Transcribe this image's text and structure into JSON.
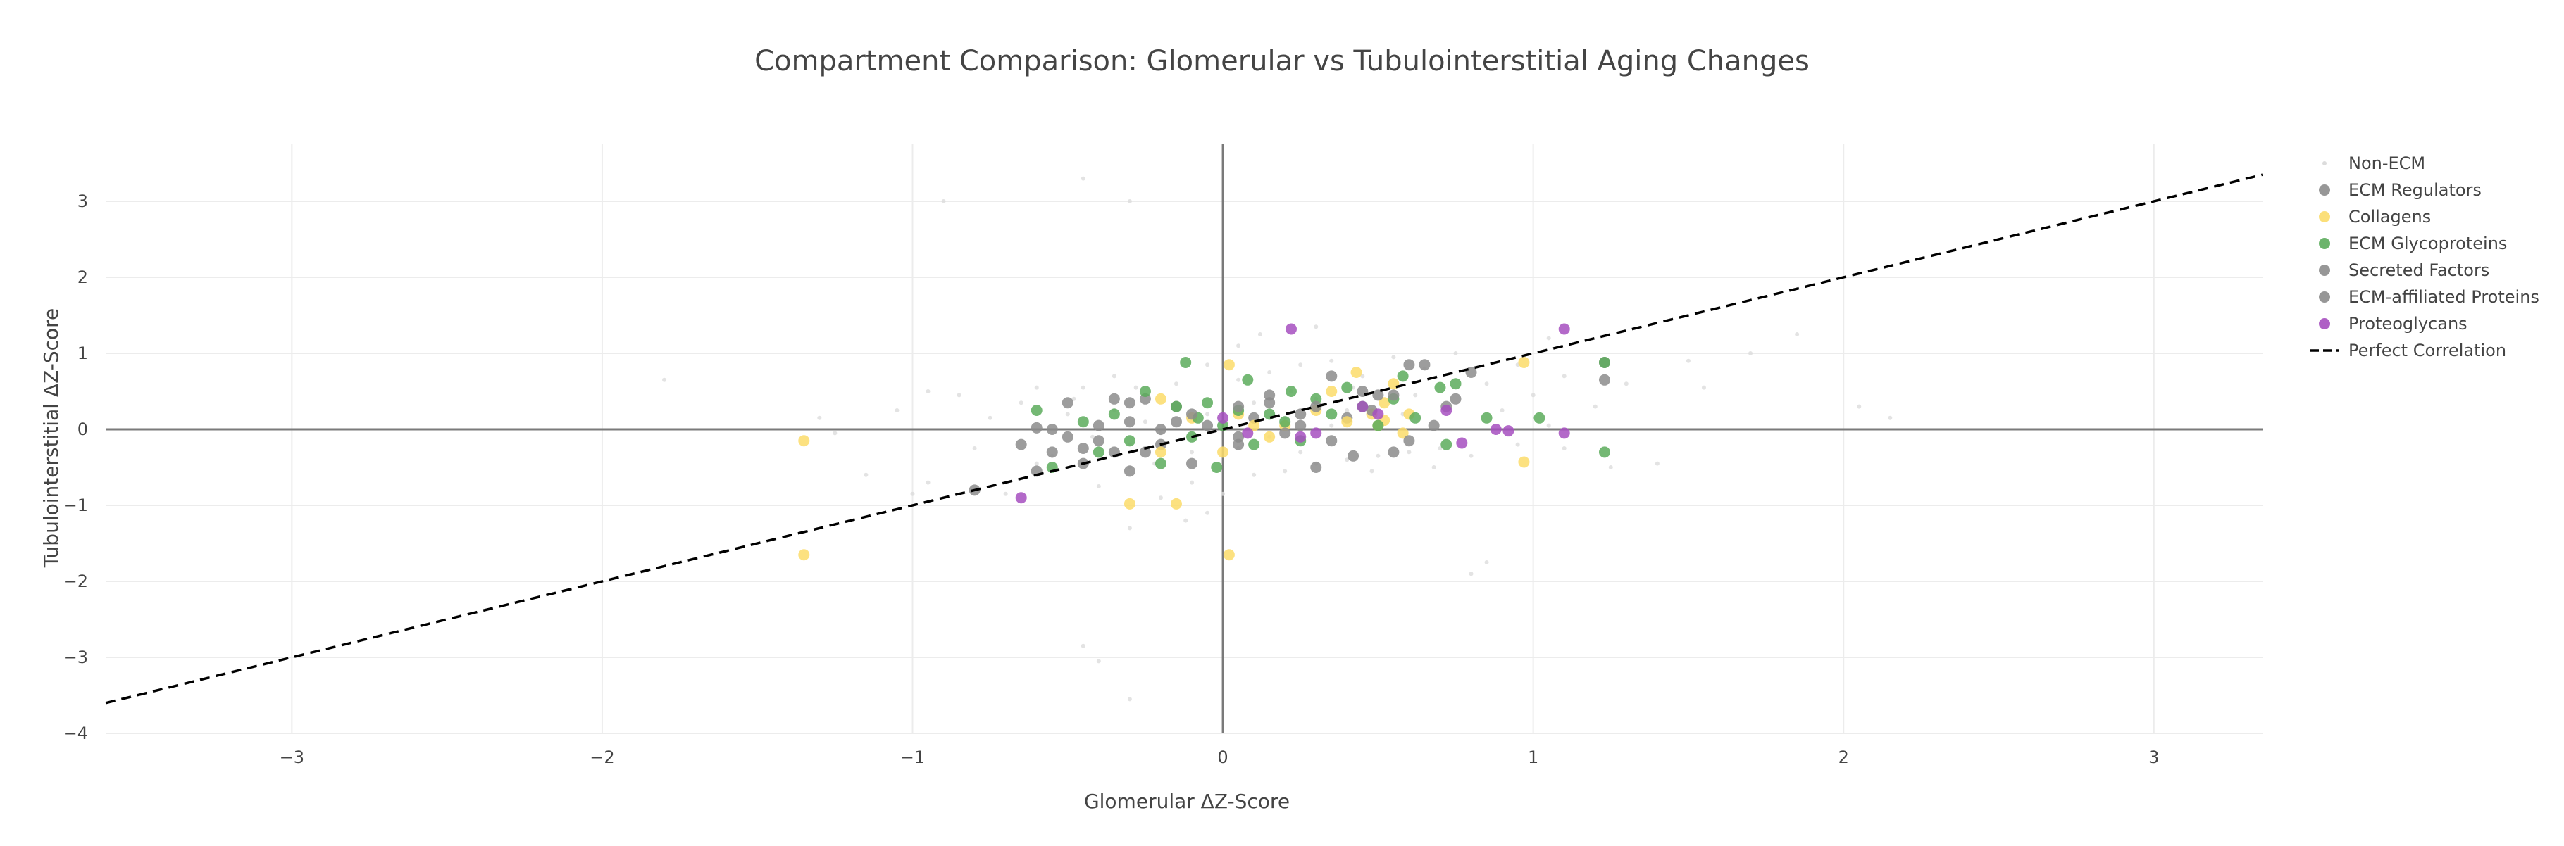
{
  "chart_data": {
    "type": "scatter",
    "title": "Compartment Comparison: Glomerular vs Tubulointerstitial Aging Changes",
    "xlabel": "Glomerular ΔZ-Score",
    "ylabel": "Tubulointerstitial ΔZ-Score",
    "xlim": [
      -3.6,
      3.35
    ],
    "ylim": [
      -4.0,
      3.75
    ],
    "x_ticks": [
      -3,
      -2,
      -1,
      0,
      1,
      2,
      3
    ],
    "x_tick_labels": [
      "−3",
      "−2",
      "−1",
      "0",
      "1",
      "2",
      "3"
    ],
    "y_ticks": [
      -4,
      -3,
      -2,
      -1,
      0,
      1,
      2,
      3
    ],
    "y_tick_labels": [
      "−4",
      "−3",
      "−2",
      "−1",
      "0",
      "1",
      "2",
      "3"
    ],
    "grid": true,
    "legend_position": "top-right",
    "series": [
      {
        "name": "Non-ECM",
        "color": "#dcdcdc",
        "marker": "small-dot",
        "points": [
          [
            -1.8,
            0.65
          ],
          [
            -1.15,
            -0.6
          ],
          [
            -0.9,
            3.0
          ],
          [
            -0.45,
            -2.85
          ],
          [
            -0.4,
            -3.05
          ],
          [
            -0.3,
            -3.55
          ],
          [
            -0.45,
            3.3
          ],
          [
            -0.3,
            3.0
          ],
          [
            1.05,
            1.2
          ],
          [
            1.55,
            0.55
          ],
          [
            1.7,
            1.0
          ],
          [
            1.85,
            1.25
          ],
          [
            2.05,
            0.3
          ],
          [
            2.15,
            0.15
          ],
          [
            0.8,
            -1.9
          ],
          [
            0.85,
            -1.75
          ],
          [
            -1.25,
            -0.05
          ],
          [
            -1.0,
            -0.85
          ],
          [
            -0.95,
            -0.7
          ],
          [
            -0.7,
            -0.85
          ],
          [
            -0.6,
            0.55
          ],
          [
            -0.65,
            0.35
          ],
          [
            -0.55,
            -0.35
          ],
          [
            -0.5,
            0.2
          ],
          [
            -0.45,
            0.55
          ],
          [
            -0.4,
            -0.75
          ],
          [
            -0.35,
            0.7
          ],
          [
            -0.3,
            -0.5
          ],
          [
            -0.25,
            0.45
          ],
          [
            -0.2,
            -0.9
          ],
          [
            -0.15,
            0.6
          ],
          [
            -0.1,
            -0.7
          ],
          [
            -0.05,
            0.85
          ],
          [
            0.0,
            -0.85
          ],
          [
            0.05,
            0.65
          ],
          [
            0.1,
            -0.6
          ],
          [
            0.15,
            0.75
          ],
          [
            0.2,
            -0.55
          ],
          [
            0.25,
            0.85
          ],
          [
            0.3,
            -0.45
          ],
          [
            0.35,
            0.9
          ],
          [
            0.4,
            -0.4
          ],
          [
            0.45,
            0.7
          ],
          [
            0.5,
            -0.35
          ],
          [
            0.55,
            0.95
          ],
          [
            0.6,
            -0.3
          ],
          [
            0.65,
            0.8
          ],
          [
            0.7,
            -0.25
          ],
          [
            0.75,
            1.0
          ],
          [
            0.8,
            -0.35
          ],
          [
            0.85,
            0.6
          ],
          [
            0.9,
            0.25
          ],
          [
            0.95,
            -0.2
          ],
          [
            1.0,
            0.45
          ],
          [
            1.05,
            0.05
          ],
          [
            1.1,
            -0.25
          ],
          [
            1.2,
            0.3
          ],
          [
            1.3,
            0.6
          ],
          [
            1.4,
            -0.45
          ],
          [
            1.5,
            0.9
          ],
          [
            -0.35,
            0.25
          ],
          [
            -0.3,
            -0.2
          ],
          [
            -0.25,
            0.1
          ],
          [
            -0.2,
            -0.05
          ],
          [
            -0.15,
            0.3
          ],
          [
            -0.1,
            -0.3
          ],
          [
            -0.05,
            0.2
          ],
          [
            0.05,
            -0.25
          ],
          [
            0.1,
            0.35
          ],
          [
            0.15,
            -0.1
          ],
          [
            0.2,
            0.15
          ],
          [
            0.25,
            -0.3
          ],
          [
            0.3,
            0.4
          ],
          [
            0.35,
            0.05
          ],
          [
            0.4,
            0.25
          ],
          [
            -0.28,
            0.55
          ],
          [
            -0.22,
            -0.45
          ],
          [
            0.22,
            0.5
          ],
          [
            -0.6,
            -0.45
          ],
          [
            -0.75,
            0.15
          ],
          [
            -0.8,
            -0.25
          ],
          [
            -0.85,
            0.45
          ],
          [
            0.62,
            0.45
          ],
          [
            0.68,
            -0.5
          ],
          [
            0.72,
            0.3
          ],
          [
            0.58,
            0.2
          ],
          [
            0.48,
            -0.55
          ],
          [
            0.42,
            0.55
          ],
          [
            -0.42,
            -0.1
          ],
          [
            -0.48,
            0.4
          ],
          [
            1.25,
            -0.5
          ],
          [
            -1.05,
            0.25
          ],
          [
            -0.95,
            0.5
          ],
          [
            -1.3,
            0.15
          ],
          [
            0.95,
            0.85
          ],
          [
            1.1,
            0.7
          ],
          [
            0.05,
            1.1
          ],
          [
            -0.05,
            -1.1
          ],
          [
            0.12,
            1.25
          ],
          [
            -0.12,
            -1.2
          ],
          [
            0.3,
            1.35
          ],
          [
            -0.3,
            -1.3
          ]
        ]
      },
      {
        "name": "ECM Regulators",
        "color": "#8c8c8c",
        "points": [
          [
            -0.6,
            -0.55
          ],
          [
            -0.6,
            0.02
          ],
          [
            -0.55,
            -0.3
          ],
          [
            -0.5,
            -0.1
          ],
          [
            -0.45,
            -0.45
          ],
          [
            -0.4,
            -0.15
          ],
          [
            -0.35,
            0.4
          ],
          [
            -0.35,
            -0.3
          ],
          [
            -0.3,
            0.1
          ],
          [
            -0.3,
            -0.55
          ],
          [
            -0.25,
            0.4
          ],
          [
            -0.2,
            -0.2
          ],
          [
            -0.15,
            0.3
          ],
          [
            -0.1,
            -0.45
          ],
          [
            -0.05,
            0.05
          ],
          [
            0.05,
            -0.1
          ],
          [
            0.1,
            0.15
          ],
          [
            0.15,
            0.45
          ],
          [
            0.25,
            0.2
          ],
          [
            0.3,
            -0.5
          ],
          [
            0.35,
            0.7
          ],
          [
            0.4,
            0.15
          ],
          [
            0.45,
            0.5
          ],
          [
            0.55,
            -0.3
          ],
          [
            0.6,
            0.85
          ],
          [
            0.75,
            0.4
          ],
          [
            0.8,
            0.75
          ],
          [
            1.23,
            0.65
          ],
          [
            1.23,
            0.88
          ]
        ]
      },
      {
        "name": "Collagens",
        "color": "#fbdc6a",
        "points": [
          [
            -1.35,
            -0.15
          ],
          [
            -1.35,
            -1.65
          ],
          [
            -0.3,
            -0.98
          ],
          [
            -0.2,
            -0.3
          ],
          [
            -0.2,
            0.4
          ],
          [
            -0.15,
            -0.98
          ],
          [
            -0.1,
            0.15
          ],
          [
            0.0,
            -0.3
          ],
          [
            0.02,
            0.85
          ],
          [
            0.02,
            -1.65
          ],
          [
            0.05,
            0.2
          ],
          [
            0.1,
            0.05
          ],
          [
            0.15,
            -0.1
          ],
          [
            0.2,
            0.05
          ],
          [
            0.3,
            0.25
          ],
          [
            0.35,
            0.5
          ],
          [
            0.4,
            0.1
          ],
          [
            0.43,
            0.75
          ],
          [
            0.48,
            0.2
          ],
          [
            0.5,
            0.05
          ],
          [
            0.52,
            0.35
          ],
          [
            0.52,
            0.12
          ],
          [
            0.55,
            0.6
          ],
          [
            0.58,
            -0.05
          ],
          [
            0.6,
            0.2
          ],
          [
            0.97,
            0.88
          ],
          [
            0.97,
            -0.43
          ]
        ]
      },
      {
        "name": "ECM Glycoproteins",
        "color": "#5cac5c",
        "points": [
          [
            -0.6,
            0.25
          ],
          [
            -0.55,
            -0.5
          ],
          [
            -0.45,
            0.1
          ],
          [
            -0.4,
            -0.3
          ],
          [
            -0.35,
            0.2
          ],
          [
            -0.3,
            -0.15
          ],
          [
            -0.25,
            0.5
          ],
          [
            -0.2,
            -0.45
          ],
          [
            -0.15,
            0.3
          ],
          [
            -0.12,
            0.88
          ],
          [
            -0.1,
            -0.1
          ],
          [
            -0.08,
            0.15
          ],
          [
            -0.05,
            0.35
          ],
          [
            -0.02,
            -0.5
          ],
          [
            0.0,
            0.05
          ],
          [
            0.05,
            0.25
          ],
          [
            0.08,
            0.65
          ],
          [
            0.1,
            -0.2
          ],
          [
            0.15,
            0.2
          ],
          [
            0.2,
            0.1
          ],
          [
            0.22,
            0.5
          ],
          [
            0.25,
            -0.15
          ],
          [
            0.3,
            0.4
          ],
          [
            0.35,
            0.2
          ],
          [
            0.4,
            0.55
          ],
          [
            0.45,
            0.3
          ],
          [
            0.5,
            0.05
          ],
          [
            0.55,
            0.4
          ],
          [
            0.58,
            0.7
          ],
          [
            0.62,
            0.15
          ],
          [
            0.7,
            0.55
          ],
          [
            0.72,
            -0.2
          ],
          [
            0.75,
            0.6
          ],
          [
            0.85,
            0.15
          ],
          [
            1.02,
            0.15
          ],
          [
            1.23,
            0.88
          ],
          [
            1.23,
            -0.3
          ]
        ]
      },
      {
        "name": "Secreted Factors",
        "color": "#8c8c8c",
        "points": [
          [
            -0.8,
            -0.8
          ],
          [
            -0.65,
            -0.2
          ],
          [
            -0.5,
            0.35
          ],
          [
            -0.4,
            0.05
          ],
          [
            -0.25,
            -0.3
          ],
          [
            -0.15,
            0.1
          ],
          [
            0.05,
            0.3
          ],
          [
            0.2,
            -0.05
          ],
          [
            0.3,
            0.3
          ],
          [
            0.42,
            -0.35
          ],
          [
            0.5,
            0.45
          ],
          [
            0.65,
            0.85
          ],
          [
            0.72,
            0.3
          ],
          [
            0.6,
            -0.15
          ]
        ]
      },
      {
        "name": "ECM-affiliated Proteins",
        "color": "#8c8c8c",
        "points": [
          [
            -0.55,
            0.0
          ],
          [
            -0.45,
            -0.25
          ],
          [
            -0.3,
            0.35
          ],
          [
            -0.2,
            0.0
          ],
          [
            -0.1,
            0.2
          ],
          [
            0.05,
            -0.2
          ],
          [
            0.15,
            0.35
          ],
          [
            0.25,
            0.05
          ],
          [
            0.35,
            -0.15
          ],
          [
            0.48,
            0.25
          ],
          [
            0.55,
            0.45
          ],
          [
            0.68,
            0.05
          ]
        ]
      },
      {
        "name": "Proteoglycans",
        "color": "#a64fbf",
        "points": [
          [
            -0.65,
            -0.9
          ],
          [
            0.0,
            0.15
          ],
          [
            0.08,
            -0.05
          ],
          [
            0.22,
            1.32
          ],
          [
            0.25,
            -0.1
          ],
          [
            0.3,
            -0.05
          ],
          [
            0.45,
            0.3
          ],
          [
            0.5,
            0.2
          ],
          [
            0.72,
            0.25
          ],
          [
            0.77,
            -0.18
          ],
          [
            0.88,
            0.0
          ],
          [
            0.92,
            -0.02
          ],
          [
            1.1,
            1.32
          ],
          [
            1.1,
            -0.05
          ]
        ]
      },
      {
        "name": "Perfect Correlation",
        "color": "#000000",
        "line": [
          [
            -3.6,
            -3.6
          ],
          [
            3.35,
            3.35
          ]
        ]
      }
    ]
  }
}
